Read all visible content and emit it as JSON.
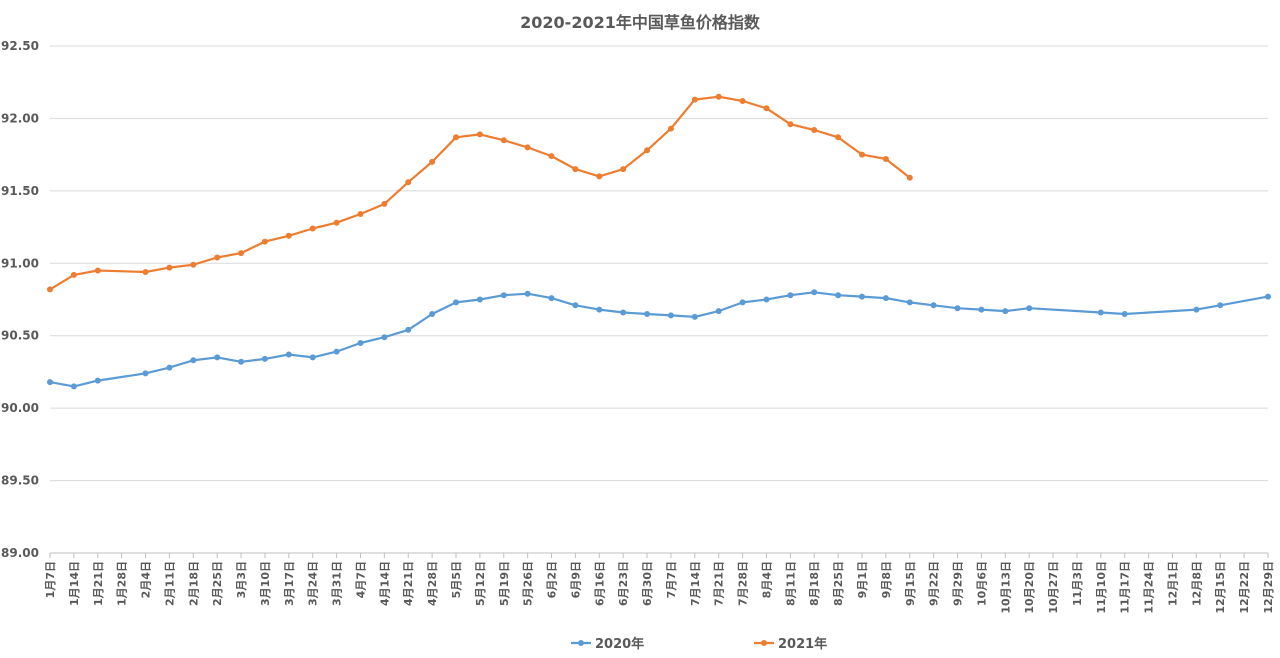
{
  "chart_data": {
    "type": "line",
    "title": "2020-2021年中国草鱼价格指数",
    "ylim": [
      89.0,
      92.5
    ],
    "yticks": [
      "92.50",
      "92.00",
      "91.50",
      "91.00",
      "90.50",
      "90.00",
      "89.50",
      "89.00"
    ],
    "categories": [
      "1月7日",
      "1月14日",
      "1月21日",
      "1月28日",
      "2月4日",
      "2月11日",
      "2月18日",
      "2月25日",
      "3月3日",
      "3月10日",
      "3月17日",
      "3月24日",
      "3月31日",
      "4月7日",
      "4月14日",
      "4月21日",
      "4月28日",
      "5月5日",
      "5月12日",
      "5月19日",
      "5月26日",
      "6月2日",
      "6月9日",
      "6月16日",
      "6月23日",
      "6月30日",
      "7月7日",
      "7月14日",
      "7月21日",
      "7月28日",
      "8月4日",
      "8月11日",
      "8月18日",
      "8月25日",
      "9月1日",
      "9月8日",
      "9月15日",
      "9月22日",
      "9月29日",
      "10月6日",
      "10月13日",
      "10月20日",
      "10月27日",
      "11月3日",
      "11月10日",
      "11月17日",
      "11月24日",
      "12月1日",
      "12月8日",
      "12月15日",
      "12月22日",
      "12月29日"
    ],
    "grid": true,
    "legend_position": "bottom",
    "series": [
      {
        "name": "2020年",
        "color": "#5B9BD5",
        "values": [
          90.18,
          90.15,
          90.19,
          null,
          90.24,
          90.28,
          90.33,
          90.35,
          90.32,
          90.34,
          90.37,
          90.35,
          90.39,
          90.45,
          90.49,
          90.54,
          90.65,
          90.73,
          90.75,
          90.78,
          90.79,
          90.76,
          90.71,
          90.68,
          90.66,
          90.65,
          90.64,
          90.63,
          90.67,
          90.73,
          90.75,
          90.78,
          90.8,
          90.78,
          90.77,
          90.76,
          90.73,
          90.71,
          90.69,
          90.68,
          90.67,
          90.69,
          null,
          null,
          90.66,
          90.65,
          null,
          null,
          90.68,
          90.71,
          null,
          90.77
        ]
      },
      {
        "name": "2021年",
        "color": "#ED7D31",
        "values": [
          90.82,
          90.92,
          90.95,
          null,
          90.94,
          90.97,
          90.99,
          91.04,
          91.07,
          91.15,
          91.19,
          91.24,
          91.28,
          91.34,
          91.41,
          91.56,
          91.7,
          91.87,
          91.89,
          91.85,
          91.8,
          91.74,
          91.65,
          91.6,
          91.65,
          91.78,
          91.93,
          92.13,
          92.15,
          92.12,
          92.07,
          91.96,
          91.92,
          91.87,
          91.75,
          91.72,
          91.59,
          null,
          null,
          null,
          null,
          null,
          null,
          null,
          null,
          null,
          null,
          null,
          null,
          null,
          null,
          null
        ]
      }
    ]
  }
}
